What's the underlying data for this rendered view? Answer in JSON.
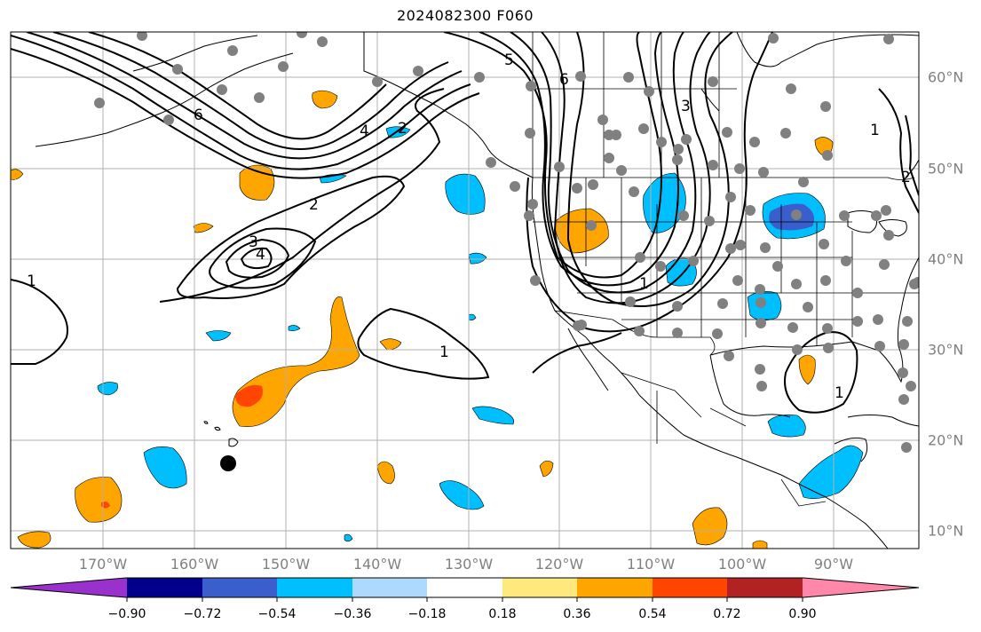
{
  "title": "2024082300 F060",
  "lon_labels": [
    "170°W",
    "160°W",
    "150°W",
    "140°W",
    "130°W",
    "120°W",
    "110°W",
    "100°W",
    "90°W"
  ],
  "lat_labels": [
    "60°N",
    "50°N",
    "40°N",
    "30°N",
    "20°N",
    "10°N"
  ],
  "colorbar": {
    "ticks": [
      "−0.90",
      "−0.72",
      "−0.54",
      "−0.36",
      "−0.18",
      "0.18",
      "0.36",
      "0.54",
      "0.72",
      "0.90"
    ],
    "colors": [
      "#9932cc",
      "#00008b",
      "#3a5fcd",
      "#00bfff",
      "#add8ff",
      "#ffffff",
      "#ffe87c",
      "#ffa500",
      "#ff4500",
      "#b22222",
      "#ff88aa"
    ]
  },
  "contour_labels": [
    "1",
    "2",
    "3",
    "4",
    "5",
    "6",
    "1",
    "2",
    "1",
    "1",
    "3",
    "4",
    "2",
    "1",
    "6"
  ],
  "stations": {
    "color": "#808080",
    "highlight_color": "#000000"
  }
}
